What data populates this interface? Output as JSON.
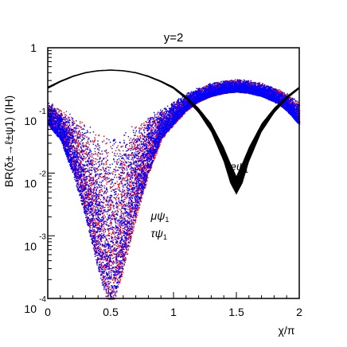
{
  "chart_data": {
    "type": "scatter",
    "title": "y=2",
    "xlabel": "χ/π",
    "ylabel": "BR(δ±→ℓ±ψ1) (IH)",
    "xlim": [
      0,
      2
    ],
    "ylim": [
      0.0001,
      1
    ],
    "yscale": "log",
    "x_ticks": [
      "0",
      "0.5",
      "1",
      "1.5",
      "2"
    ],
    "y_ticks": [
      {
        "base": "1",
        "exp": ""
      },
      {
        "base": "10",
        "exp": "-1"
      },
      {
        "base": "10",
        "exp": "-2"
      },
      {
        "base": "10",
        "exp": "-3"
      },
      {
        "base": "10",
        "exp": "-4"
      }
    ],
    "grid": false,
    "series": [
      {
        "name": "eψ1",
        "color": "#000000",
        "x": [
          0,
          0.1,
          0.2,
          0.3,
          0.4,
          0.5,
          0.6,
          0.7,
          0.8,
          0.9,
          1.0,
          1.1,
          1.2,
          1.3,
          1.4,
          1.45,
          1.5,
          1.55,
          1.6,
          1.7,
          1.8,
          1.9,
          2.0
        ],
        "y_upper": [
          0.24,
          0.3,
          0.36,
          0.41,
          0.44,
          0.45,
          0.44,
          0.41,
          0.36,
          0.3,
          0.24,
          0.17,
          0.11,
          0.062,
          0.026,
          0.015,
          0.009,
          0.015,
          0.026,
          0.062,
          0.11,
          0.17,
          0.24
        ],
        "y_lower": [
          0.22,
          0.28,
          0.34,
          0.39,
          0.42,
          0.43,
          0.42,
          0.39,
          0.34,
          0.28,
          0.22,
          0.15,
          0.09,
          0.045,
          0.015,
          0.007,
          0.0045,
          0.007,
          0.015,
          0.045,
          0.09,
          0.15,
          0.22
        ]
      },
      {
        "name": "μψ1",
        "color": "#ff0000",
        "x": [
          0,
          0.1,
          0.2,
          0.3,
          0.4,
          0.5,
          0.6,
          0.7,
          0.8,
          0.9,
          1.0,
          1.1,
          1.2,
          1.3,
          1.4,
          1.5,
          1.6,
          1.7,
          1.8,
          1.9,
          2.0
        ],
        "y_upper": [
          0.14,
          0.11,
          0.085,
          0.062,
          0.05,
          0.045,
          0.05,
          0.062,
          0.085,
          0.11,
          0.14,
          0.19,
          0.24,
          0.28,
          0.31,
          0.32,
          0.31,
          0.28,
          0.24,
          0.19,
          0.14
        ],
        "y_lower": [
          0.06,
          0.035,
          0.01,
          0.002,
          0.0003,
          6e-05,
          0.0003,
          0.002,
          0.01,
          0.035,
          0.06,
          0.1,
          0.14,
          0.17,
          0.19,
          0.2,
          0.19,
          0.17,
          0.14,
          0.1,
          0.06
        ]
      },
      {
        "name": "τψ1",
        "color": "#0000ff",
        "x": [
          0,
          0.1,
          0.2,
          0.3,
          0.4,
          0.5,
          0.6,
          0.7,
          0.8,
          0.9,
          1.0,
          1.1,
          1.2,
          1.3,
          1.4,
          1.5,
          1.6,
          1.7,
          1.8,
          1.9,
          2.0
        ],
        "y_upper": [
          0.14,
          0.11,
          0.085,
          0.062,
          0.05,
          0.045,
          0.05,
          0.062,
          0.085,
          0.11,
          0.14,
          0.19,
          0.24,
          0.28,
          0.31,
          0.32,
          0.31,
          0.28,
          0.24,
          0.19,
          0.14
        ],
        "y_lower": [
          0.06,
          0.035,
          0.01,
          0.002,
          0.0003,
          6e-05,
          0.0003,
          0.002,
          0.01,
          0.035,
          0.06,
          0.1,
          0.14,
          0.17,
          0.19,
          0.2,
          0.19,
          0.17,
          0.14,
          0.1,
          0.06
        ]
      }
    ],
    "annotations": [
      {
        "text": "eψ",
        "sub": "1",
        "color": "#000000",
        "x": 1.45,
        "y": 0.011
      },
      {
        "text": "μψ",
        "sub": "1",
        "color": "#ff0000",
        "x": 0.82,
        "y": 0.0018
      },
      {
        "text": "τψ",
        "sub": "1",
        "color": "#0000ff",
        "x": 0.82,
        "y": 0.00095
      }
    ]
  }
}
